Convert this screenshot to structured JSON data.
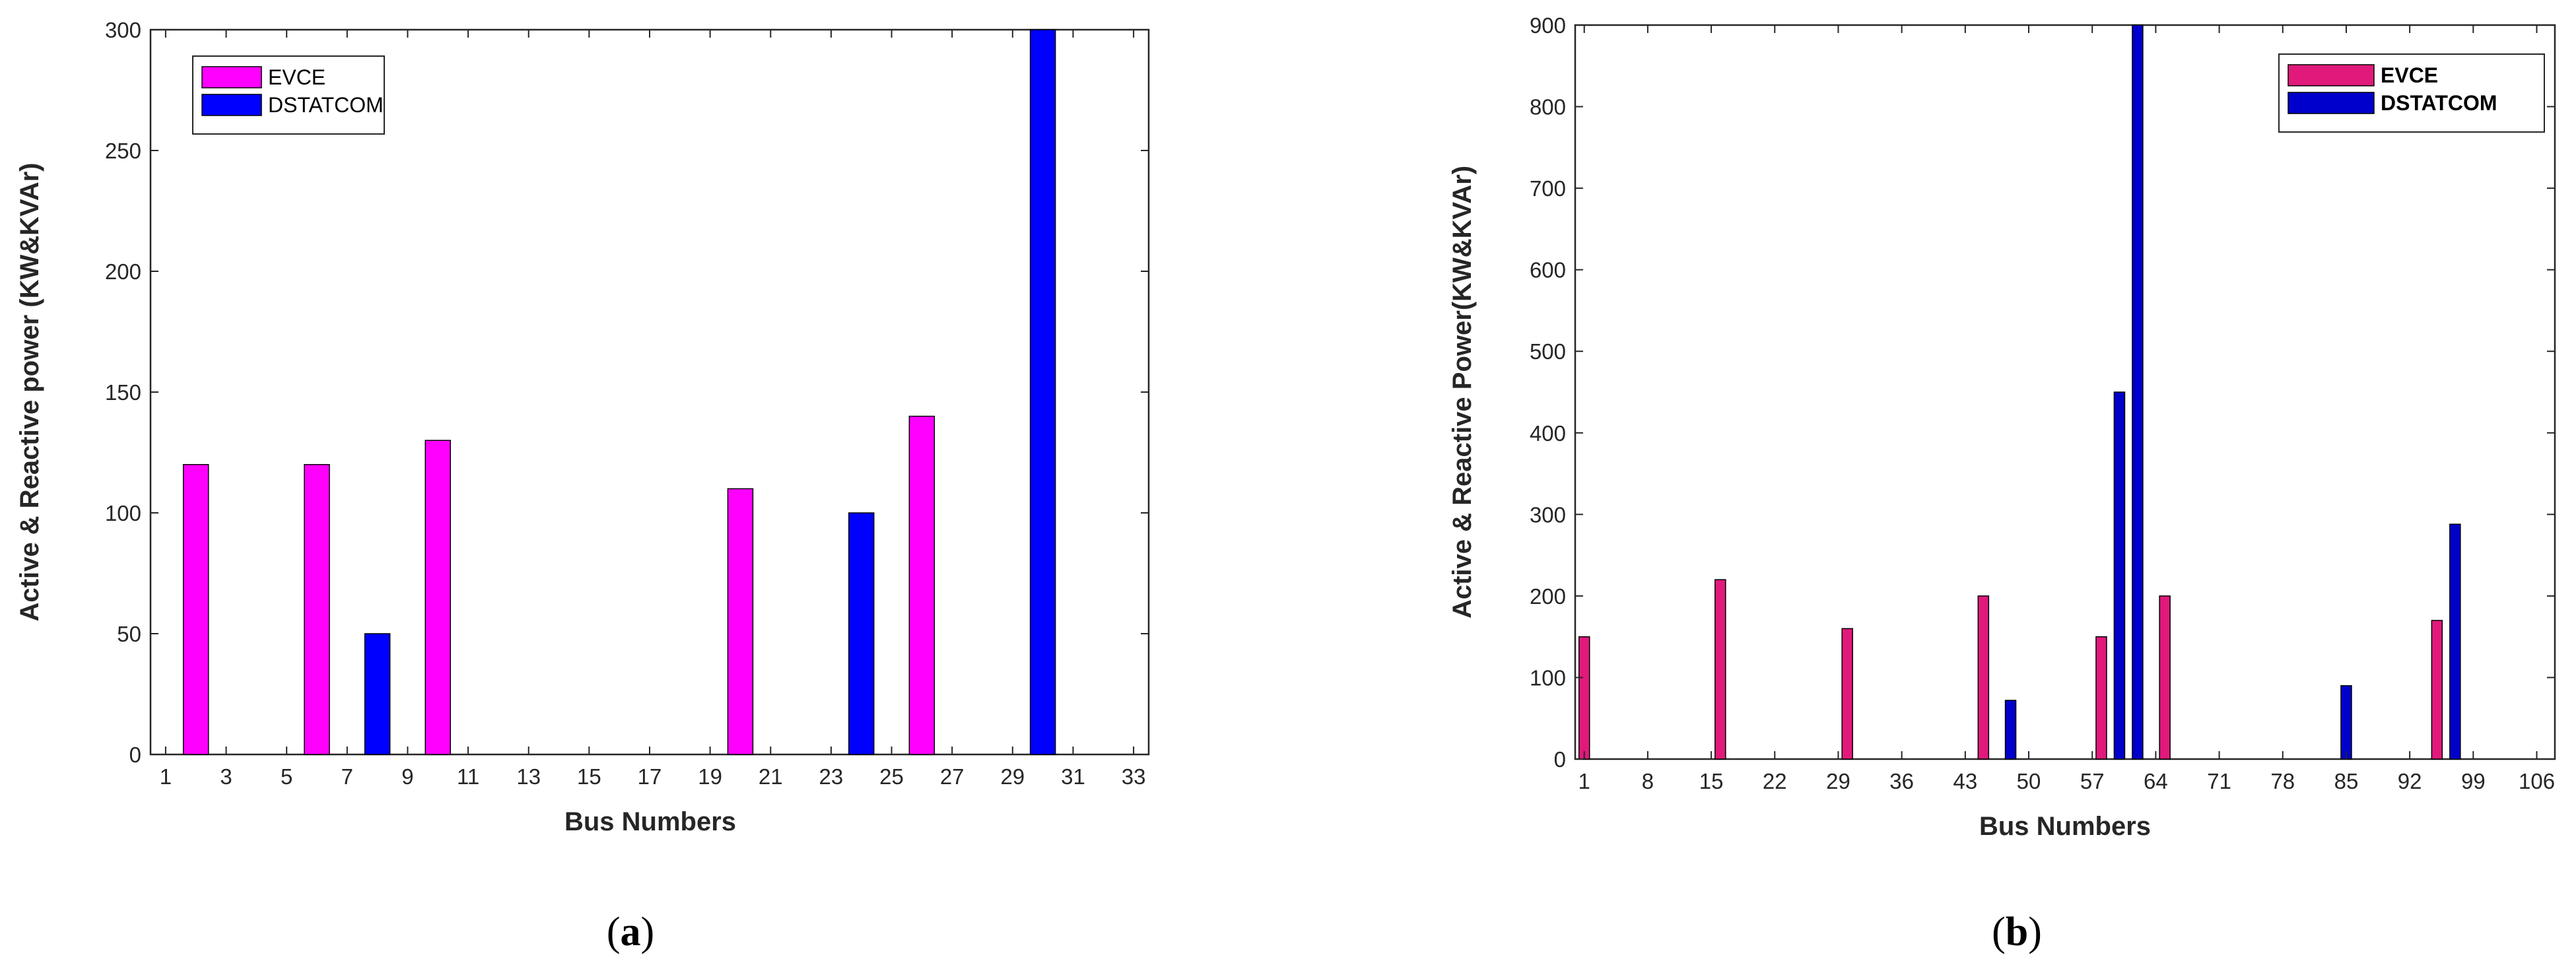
{
  "chart_data": [
    {
      "id": "a",
      "type": "bar",
      "caption_open": "(",
      "caption_letter": "a",
      "caption_close": ")",
      "xlabel": "Bus Numbers",
      "ylabel": "Active & Reactive power (KW&KVAr)",
      "ylim": [
        0,
        300
      ],
      "yticks": [
        0,
        50,
        100,
        150,
        200,
        250,
        300
      ],
      "xlim": [
        0.5,
        33.5
      ],
      "xticks": [
        1,
        3,
        5,
        7,
        9,
        11,
        13,
        15,
        17,
        19,
        21,
        23,
        25,
        27,
        29,
        31,
        33
      ],
      "grid": false,
      "legend_position": "top-left",
      "series": [
        {
          "name": "EVCE",
          "color": "#ff00ff",
          "x": [
            2,
            6,
            10,
            20,
            26
          ],
          "values": [
            120,
            120,
            130,
            110,
            140
          ]
        },
        {
          "name": "DSTATCOM",
          "color": "#0000ff",
          "x": [
            8,
            24,
            30
          ],
          "values": [
            50,
            100,
            300
          ]
        }
      ]
    },
    {
      "id": "b",
      "type": "bar",
      "caption_open": "(",
      "caption_letter": "b",
      "caption_close": ")",
      "xlabel": "Bus Numbers",
      "ylabel": "Active & Reactive Power(KW&KVAr)",
      "ylim": [
        0,
        900
      ],
      "yticks": [
        0,
        100,
        200,
        300,
        400,
        500,
        600,
        700,
        800,
        900
      ],
      "xlim": [
        0,
        108
      ],
      "xticks": [
        1,
        8,
        15,
        22,
        29,
        36,
        43,
        50,
        57,
        64,
        71,
        78,
        85,
        92,
        99,
        106
      ],
      "grid": false,
      "legend_position": "top-right",
      "series": [
        {
          "name": "EVCE",
          "color": "#e0197b",
          "x": [
            1,
            16,
            30,
            45,
            58,
            65,
            95
          ],
          "values": [
            150,
            220,
            160,
            200,
            150,
            200,
            170
          ]
        },
        {
          "name": "DSTATCOM",
          "color": "#0000cc",
          "x": [
            48,
            60,
            62,
            85,
            97
          ],
          "values": [
            72,
            450,
            900,
            90,
            288
          ]
        }
      ]
    }
  ]
}
